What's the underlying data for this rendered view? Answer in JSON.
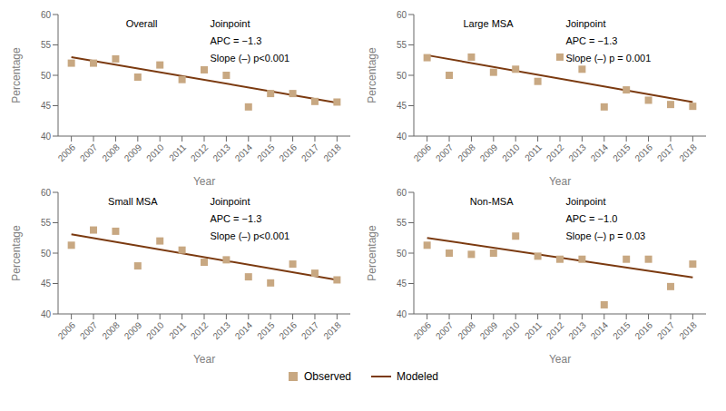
{
  "chart_data": [
    {
      "type": "scatter",
      "annotations": [
        "Overall",
        "Joinpoint",
        "APC = −1.3",
        "Slope (–) p<0.001"
      ],
      "x": [
        2006,
        2007,
        2008,
        2009,
        2010,
        2011,
        2012,
        2013,
        2014,
        2015,
        2016,
        2017,
        2018
      ],
      "xlabel": "Year",
      "ylabel": "Percentage",
      "xlim": [
        2005.4,
        2018.6
      ],
      "xticks": [
        2006,
        2007,
        2008,
        2009,
        2010,
        2011,
        2012,
        2013,
        2014,
        2015,
        2016,
        2017,
        2018
      ],
      "ylim": [
        40,
        60
      ],
      "yticks": [
        40,
        45,
        50,
        55,
        60
      ],
      "grid": false,
      "legend": "bottom",
      "series": [
        {
          "name": "Observed",
          "type": "scatter",
          "marker": "square",
          "color": "#c8a882",
          "values": [
            52.0,
            52.0,
            52.7,
            49.7,
            51.7,
            49.3,
            50.9,
            50.0,
            44.8,
            47.0,
            47.0,
            45.7,
            45.6
          ]
        },
        {
          "name": "Modeled",
          "type": "line",
          "color": "#7b3a10",
          "values": [
            53.0,
            null,
            null,
            null,
            null,
            null,
            null,
            null,
            null,
            null,
            null,
            null,
            45.5
          ]
        }
      ]
    },
    {
      "type": "scatter",
      "annotations": [
        "Large MSA",
        "Joinpoint",
        "APC = −1.3",
        "Slope (–) p = 0.001"
      ],
      "x": [
        2006,
        2007,
        2008,
        2009,
        2010,
        2011,
        2012,
        2013,
        2014,
        2015,
        2016,
        2017,
        2018
      ],
      "xlabel": "Year",
      "ylabel": "Percentage",
      "xlim": [
        2005.4,
        2018.6
      ],
      "xticks": [
        2006,
        2007,
        2008,
        2009,
        2010,
        2011,
        2012,
        2013,
        2014,
        2015,
        2016,
        2017,
        2018
      ],
      "ylim": [
        40,
        60
      ],
      "yticks": [
        40,
        45,
        50,
        55,
        60
      ],
      "grid": false,
      "legend": "bottom",
      "series": [
        {
          "name": "Observed",
          "type": "scatter",
          "marker": "square",
          "color": "#c8a882",
          "values": [
            52.9,
            50.0,
            53.0,
            50.5,
            51.0,
            49.0,
            53.0,
            51.0,
            44.8,
            47.6,
            45.9,
            45.2,
            44.9
          ]
        },
        {
          "name": "Modeled",
          "type": "line",
          "color": "#7b3a10",
          "values": [
            53.3,
            null,
            null,
            null,
            null,
            null,
            null,
            null,
            null,
            null,
            null,
            null,
            45.6
          ]
        }
      ]
    },
    {
      "type": "scatter",
      "annotations": [
        "Small MSA",
        "Joinpoint",
        "APC = −1.3",
        "Slope (–) p<0.001"
      ],
      "x": [
        2006,
        2007,
        2008,
        2009,
        2010,
        2011,
        2012,
        2013,
        2014,
        2015,
        2016,
        2017,
        2018
      ],
      "xlabel": "Year",
      "ylabel": "Percentage",
      "xlim": [
        2005.4,
        2018.6
      ],
      "xticks": [
        2006,
        2007,
        2008,
        2009,
        2010,
        2011,
        2012,
        2013,
        2014,
        2015,
        2016,
        2017,
        2018
      ],
      "ylim": [
        40,
        60
      ],
      "yticks": [
        40,
        45,
        50,
        55,
        60
      ],
      "grid": false,
      "legend": "bottom",
      "series": [
        {
          "name": "Observed",
          "type": "scatter",
          "marker": "square",
          "color": "#c8a882",
          "values": [
            51.3,
            53.8,
            53.6,
            47.9,
            52.0,
            50.5,
            48.5,
            48.9,
            46.1,
            45.1,
            48.2,
            46.7,
            45.6
          ]
        },
        {
          "name": "Modeled",
          "type": "line",
          "color": "#7b3a10",
          "values": [
            53.1,
            null,
            null,
            null,
            null,
            null,
            null,
            null,
            null,
            null,
            null,
            null,
            45.6
          ]
        }
      ]
    },
    {
      "type": "scatter",
      "annotations": [
        "Non-MSA",
        "Joinpoint",
        "APC = −1.0",
        "Slope (–) p = 0.03"
      ],
      "x": [
        2006,
        2007,
        2008,
        2009,
        2010,
        2011,
        2012,
        2013,
        2014,
        2015,
        2016,
        2017,
        2018
      ],
      "xlabel": "Year",
      "ylabel": "Percentage",
      "xlim": [
        2005.4,
        2018.6
      ],
      "xticks": [
        2006,
        2007,
        2008,
        2009,
        2010,
        2011,
        2012,
        2013,
        2014,
        2015,
        2016,
        2017,
        2018
      ],
      "ylim": [
        40,
        60
      ],
      "yticks": [
        40,
        45,
        50,
        55,
        60
      ],
      "grid": false,
      "legend": "bottom",
      "series": [
        {
          "name": "Observed",
          "type": "scatter",
          "marker": "square",
          "color": "#c8a882",
          "values": [
            51.3,
            50.0,
            49.8,
            50.0,
            52.8,
            49.5,
            49.0,
            49.0,
            41.5,
            49.0,
            49.0,
            44.5,
            48.2
          ]
        },
        {
          "name": "Modeled",
          "type": "line",
          "color": "#7b3a10",
          "values": [
            52.5,
            null,
            null,
            null,
            null,
            null,
            null,
            null,
            null,
            null,
            null,
            null,
            46.0
          ]
        }
      ]
    }
  ]
}
